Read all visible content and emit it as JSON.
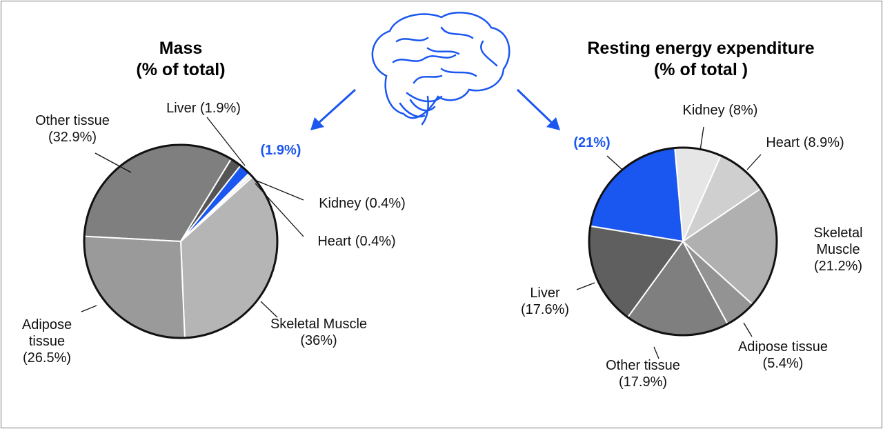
{
  "chart_data": [
    {
      "type": "pie",
      "title": "Mass",
      "subtitle": "(% of total)",
      "categories": [
        "Other tissue",
        "Liver",
        null,
        "Kidney",
        "Heart",
        "Skeletal Muscle",
        "Adipose tissue"
      ],
      "values": [
        32.9,
        1.9,
        1.9,
        0.4,
        0.4,
        36,
        26.5
      ],
      "value_labels": [
        "(32.9%)",
        "(1.9%)",
        "(1.9%)",
        "(0.4%)",
        "(0.4%)",
        "(36%)",
        "(26.5%)"
      ],
      "colors": [
        "#7f7f7f",
        "#555555",
        "#1a56f0",
        "#eeeeee",
        "#dddddd",
        "#b5b5b5",
        "#9a9a9a"
      ]
    },
    {
      "type": "pie",
      "title": "Resting energy expenditure",
      "subtitle": "(% of total )",
      "categories": [
        "Kidney",
        "Heart",
        "Skeletal Muscle",
        "Adipose tissue",
        "Other tissue",
        "Liver",
        null
      ],
      "values": [
        8,
        8.9,
        21.2,
        5.4,
        17.9,
        17.6,
        21
      ],
      "value_labels": [
        "(8%)",
        "(8.9%)",
        "(21.2%)",
        "(5.4%)",
        "(17.9%)",
        "(17.6%)",
        "(21%)"
      ],
      "colors": [
        "#e6e6e6",
        "#cfcfcf",
        "#b0b0b0",
        "#939393",
        "#7f7f7f",
        "#5f5f5f",
        "#1a56f0"
      ]
    }
  ]
}
